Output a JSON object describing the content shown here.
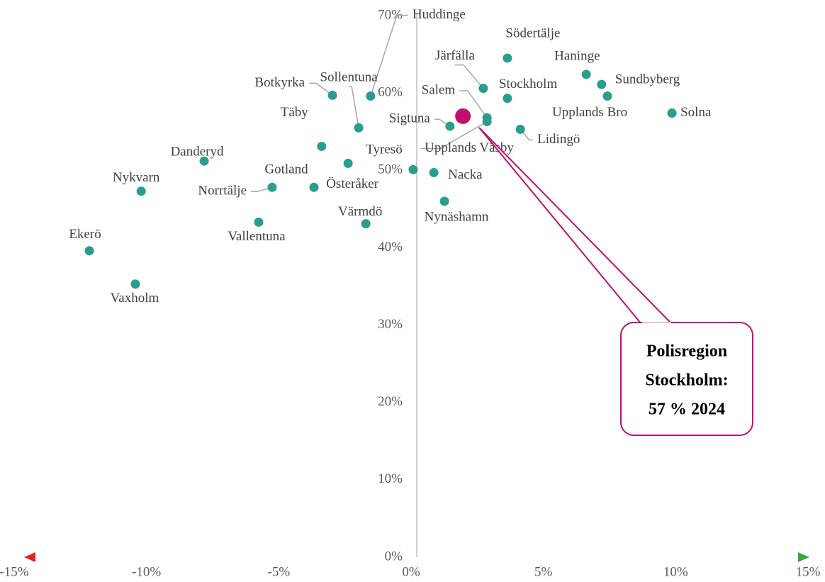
{
  "chart_data": {
    "type": "scatter",
    "labels": [
      "Huddinge",
      "Södertälje",
      "Haninge",
      "Sundbyberg",
      "Järfälla",
      "Stockholm",
      "Upplands Bro",
      "Solna",
      "Salem",
      "Upplands Väsby",
      "Sigtuna",
      "Lidingö",
      "Botkyrka",
      "Sollentuna",
      "Täby",
      "Danderyd",
      "Tyresö",
      "Nacka",
      "Nynäshamn",
      "Österåker",
      "Gotland",
      "Norrtälje",
      "Nykvarn",
      "Vallentuna",
      "Värmdö",
      "Ekerö",
      "Vaxholm"
    ],
    "x": [
      -1.53,
      3.64,
      6.62,
      7.2,
      2.73,
      3.64,
      7.42,
      9.86,
      2.87,
      2.87,
      1.47,
      4.13,
      -2.97,
      -1.98,
      -3.38,
      -7.82,
      0.08,
      0.86,
      1.26,
      -2.38,
      -3.67,
      -5.25,
      -10.2,
      -5.76,
      -1.71,
      -12.16,
      -10.42
    ],
    "values": [
      59.6,
      64.5,
      62.4,
      61.1,
      60.6,
      59.3,
      59.6,
      57.4,
      56.8,
      56.3,
      55.7,
      55.3,
      59.7,
      55.5,
      53.1,
      51.2,
      50.1,
      49.7,
      46.0,
      50.9,
      47.8,
      47.8,
      47.3,
      43.3,
      43.1,
      39.6,
      35.3
    ],
    "color": "#2a9d8f",
    "highlight": {
      "x": 1.96,
      "value": 57,
      "color": "#c0106e"
    },
    "annotation": [
      "Polisregion",
      "Stockholm:",
      "57 % 2024"
    ],
    "xlim": [
      -15,
      15
    ],
    "xticks": [
      {
        "value": -15,
        "label": "-15%"
      },
      {
        "value": -10,
        "label": "-10%"
      },
      {
        "value": -5,
        "label": "-5%"
      },
      {
        "value": 0,
        "label": "0%"
      },
      {
        "value": 5,
        "label": "5%"
      },
      {
        "value": 10,
        "label": "10%"
      },
      {
        "value": 15,
        "label": "15%"
      }
    ],
    "ylim": [
      0,
      70
    ],
    "yticks": [
      {
        "value": 0,
        "label": "0%"
      },
      {
        "value": 10,
        "label": "10%"
      },
      {
        "value": 20,
        "label": "20%"
      },
      {
        "value": 30,
        "label": "30%"
      },
      {
        "value": 40,
        "label": "40%"
      },
      {
        "value": 50,
        "label": "50%"
      },
      {
        "value": 60,
        "label": "60%"
      },
      {
        "value": 70,
        "label": "70%"
      }
    ]
  }
}
